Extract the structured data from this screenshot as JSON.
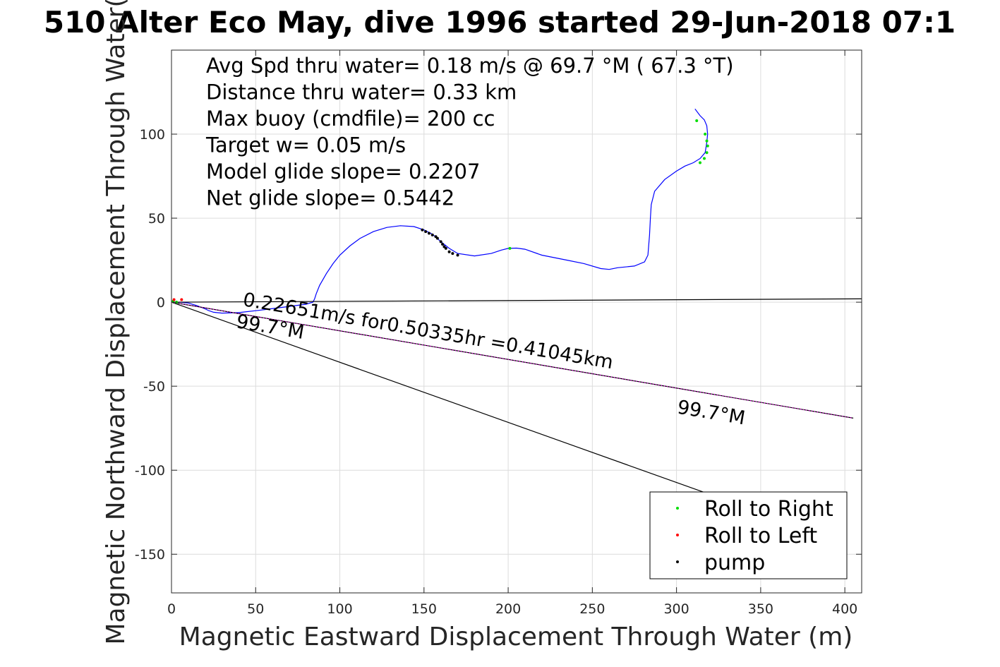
{
  "chart_data": {
    "type": "line",
    "title": "510 Alter Eco May, dive 1996 started 29-Jun-2018 07:1",
    "xlabel": "Magnetic Eastward Displacement Through Water (m)",
    "ylabel": "Magnetic Northward Displacement Through Water(",
    "xlim": [
      0,
      410
    ],
    "ylim": [
      -173,
      150
    ],
    "xticks": [
      0,
      50,
      100,
      150,
      200,
      250,
      300,
      350,
      400
    ],
    "yticks": [
      100,
      50,
      0,
      -50,
      -100,
      -150
    ],
    "grid": true,
    "stats": [
      "Avg Spd thru water=  0.18 m/s @  69.7 °M ( 67.3 °T)",
      "Distance thru water=  0.33 km",
      "Max buoy (cmdfile)= 200 cc",
      "Target w= 0.05 m/s",
      "Model glide slope= 0.2207",
      "Net glide slope= 0.5442"
    ],
    "annotations": [
      {
        "text": "0.22651m/s for0.50335hr =0.41045km",
        "x": 42,
        "y": -2,
        "angle_deg": 9.7
      },
      {
        "text": "99.7°M",
        "x": 38,
        "y": -15,
        "angle_deg": 9.7
      },
      {
        "text": "99.7°M",
        "x": 300,
        "y": -66,
        "angle_deg": 9.7
      }
    ],
    "series": [
      {
        "name": "",
        "color": "#0000ff",
        "style": "track",
        "x": [
          0,
          5,
          10,
          15,
          20,
          22,
          25,
          30,
          40,
          55,
          70,
          80,
          84,
          85,
          86,
          88,
          92,
          96,
          100,
          106,
          112,
          120,
          128,
          136,
          144,
          150,
          155,
          160,
          165,
          170,
          180,
          190,
          196,
          200,
          205,
          210,
          220,
          235,
          245,
          255,
          260,
          265,
          275,
          281,
          283,
          284,
          284.5,
          285,
          287,
          293,
          300,
          305,
          310,
          314,
          317,
          318,
          318.5,
          318,
          316.5,
          314,
          311
        ],
        "y": [
          0,
          0,
          -0.5,
          -2,
          -4,
          -5,
          -6,
          -6.5,
          -6.2,
          -4.5,
          -2.5,
          -1.2,
          0,
          2,
          5,
          10,
          17,
          23,
          28,
          33.5,
          38,
          42,
          44.5,
          45.5,
          45,
          43,
          40.5,
          36,
          32,
          29,
          27.5,
          29,
          31,
          32,
          32.2,
          31.5,
          28,
          25,
          23,
          20,
          19.5,
          20.5,
          21.5,
          24,
          28,
          40,
          50,
          58,
          66,
          73,
          78,
          81,
          83,
          85.5,
          89,
          95,
          100,
          105,
          108.5,
          111,
          115
        ]
      },
      {
        "name": "",
        "color": "#000000",
        "style": "heading",
        "x": [
          0,
          410
        ],
        "y": [
          0,
          2
        ]
      },
      {
        "name": "",
        "color": "#000000",
        "style": "heading",
        "x": [
          0,
          316
        ],
        "y": [
          0,
          -113
        ]
      },
      {
        "name": "",
        "color": "#000000",
        "style": "heading",
        "x": [
          0,
          405
        ],
        "y": [
          0,
          -69
        ]
      },
      {
        "name": "",
        "color": "#ff00ff",
        "style": "dotted",
        "x": [
          0,
          405
        ],
        "y": [
          0,
          -69
        ]
      },
      {
        "name": "Roll to Right",
        "color": "#00dd00",
        "style": "markers",
        "x": [
          1,
          3,
          201,
          314,
          316.5,
          318,
          318.5,
          318,
          317,
          312
        ],
        "y": [
          0.5,
          0,
          32,
          83,
          85.5,
          89,
          93,
          96,
          100,
          108
        ]
      },
      {
        "name": "Roll to Left",
        "color": "#ff0000",
        "style": "markers",
        "x": [
          1.5,
          6
        ],
        "y": [
          1.5,
          1.5
        ]
      },
      {
        "name": "pump",
        "color": "#000000",
        "style": "markers",
        "x": [
          149,
          151,
          153,
          155,
          157,
          158,
          160,
          161,
          162,
          163,
          165,
          167,
          170
        ],
        "y": [
          43,
          42,
          41,
          40,
          39,
          38,
          36,
          34.5,
          33,
          32,
          30,
          29,
          28
        ]
      }
    ],
    "legend": {
      "placement": "bottom-right",
      "entries": [
        {
          "label": "Roll to Right",
          "color": "#00dd00"
        },
        {
          "label": "Roll to Left",
          "color": "#ff0000"
        },
        {
          "label": "pump",
          "color": "#000000"
        }
      ]
    }
  }
}
